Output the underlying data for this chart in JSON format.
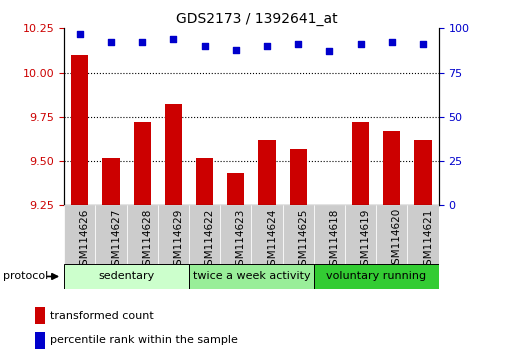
{
  "title": "GDS2173 / 1392641_at",
  "samples": [
    "GSM114626",
    "GSM114627",
    "GSM114628",
    "GSM114629",
    "GSM114622",
    "GSM114623",
    "GSM114624",
    "GSM114625",
    "GSM114618",
    "GSM114619",
    "GSM114620",
    "GSM114621"
  ],
  "bar_values": [
    10.1,
    9.52,
    9.72,
    9.82,
    9.52,
    9.43,
    9.62,
    9.57,
    9.25,
    9.72,
    9.67,
    9.62
  ],
  "percentile_values": [
    97,
    92,
    92,
    94,
    90,
    88,
    90,
    91,
    87,
    91,
    92,
    91
  ],
  "bar_color": "#cc0000",
  "dot_color": "#0000cc",
  "ylim_left": [
    9.25,
    10.25
  ],
  "ylim_right": [
    0,
    100
  ],
  "yticks_left": [
    9.25,
    9.5,
    9.75,
    10.0,
    10.25
  ],
  "yticks_right": [
    0,
    25,
    50,
    75,
    100
  ],
  "groups": [
    {
      "label": "sedentary",
      "start": 0,
      "end": 4,
      "color": "#ccffcc"
    },
    {
      "label": "twice a week activity",
      "start": 4,
      "end": 8,
      "color": "#99ee99"
    },
    {
      "label": "voluntary running",
      "start": 8,
      "end": 12,
      "color": "#33cc33"
    }
  ],
  "protocol_label": "protocol",
  "legend_bar_label": "transformed count",
  "legend_dot_label": "percentile rank within the sample",
  "bar_width": 0.55,
  "tick_label_color_left": "#cc0000",
  "tick_label_color_right": "#0000cc",
  "xtick_bg_color": "#cccccc",
  "title_fontsize": 10
}
